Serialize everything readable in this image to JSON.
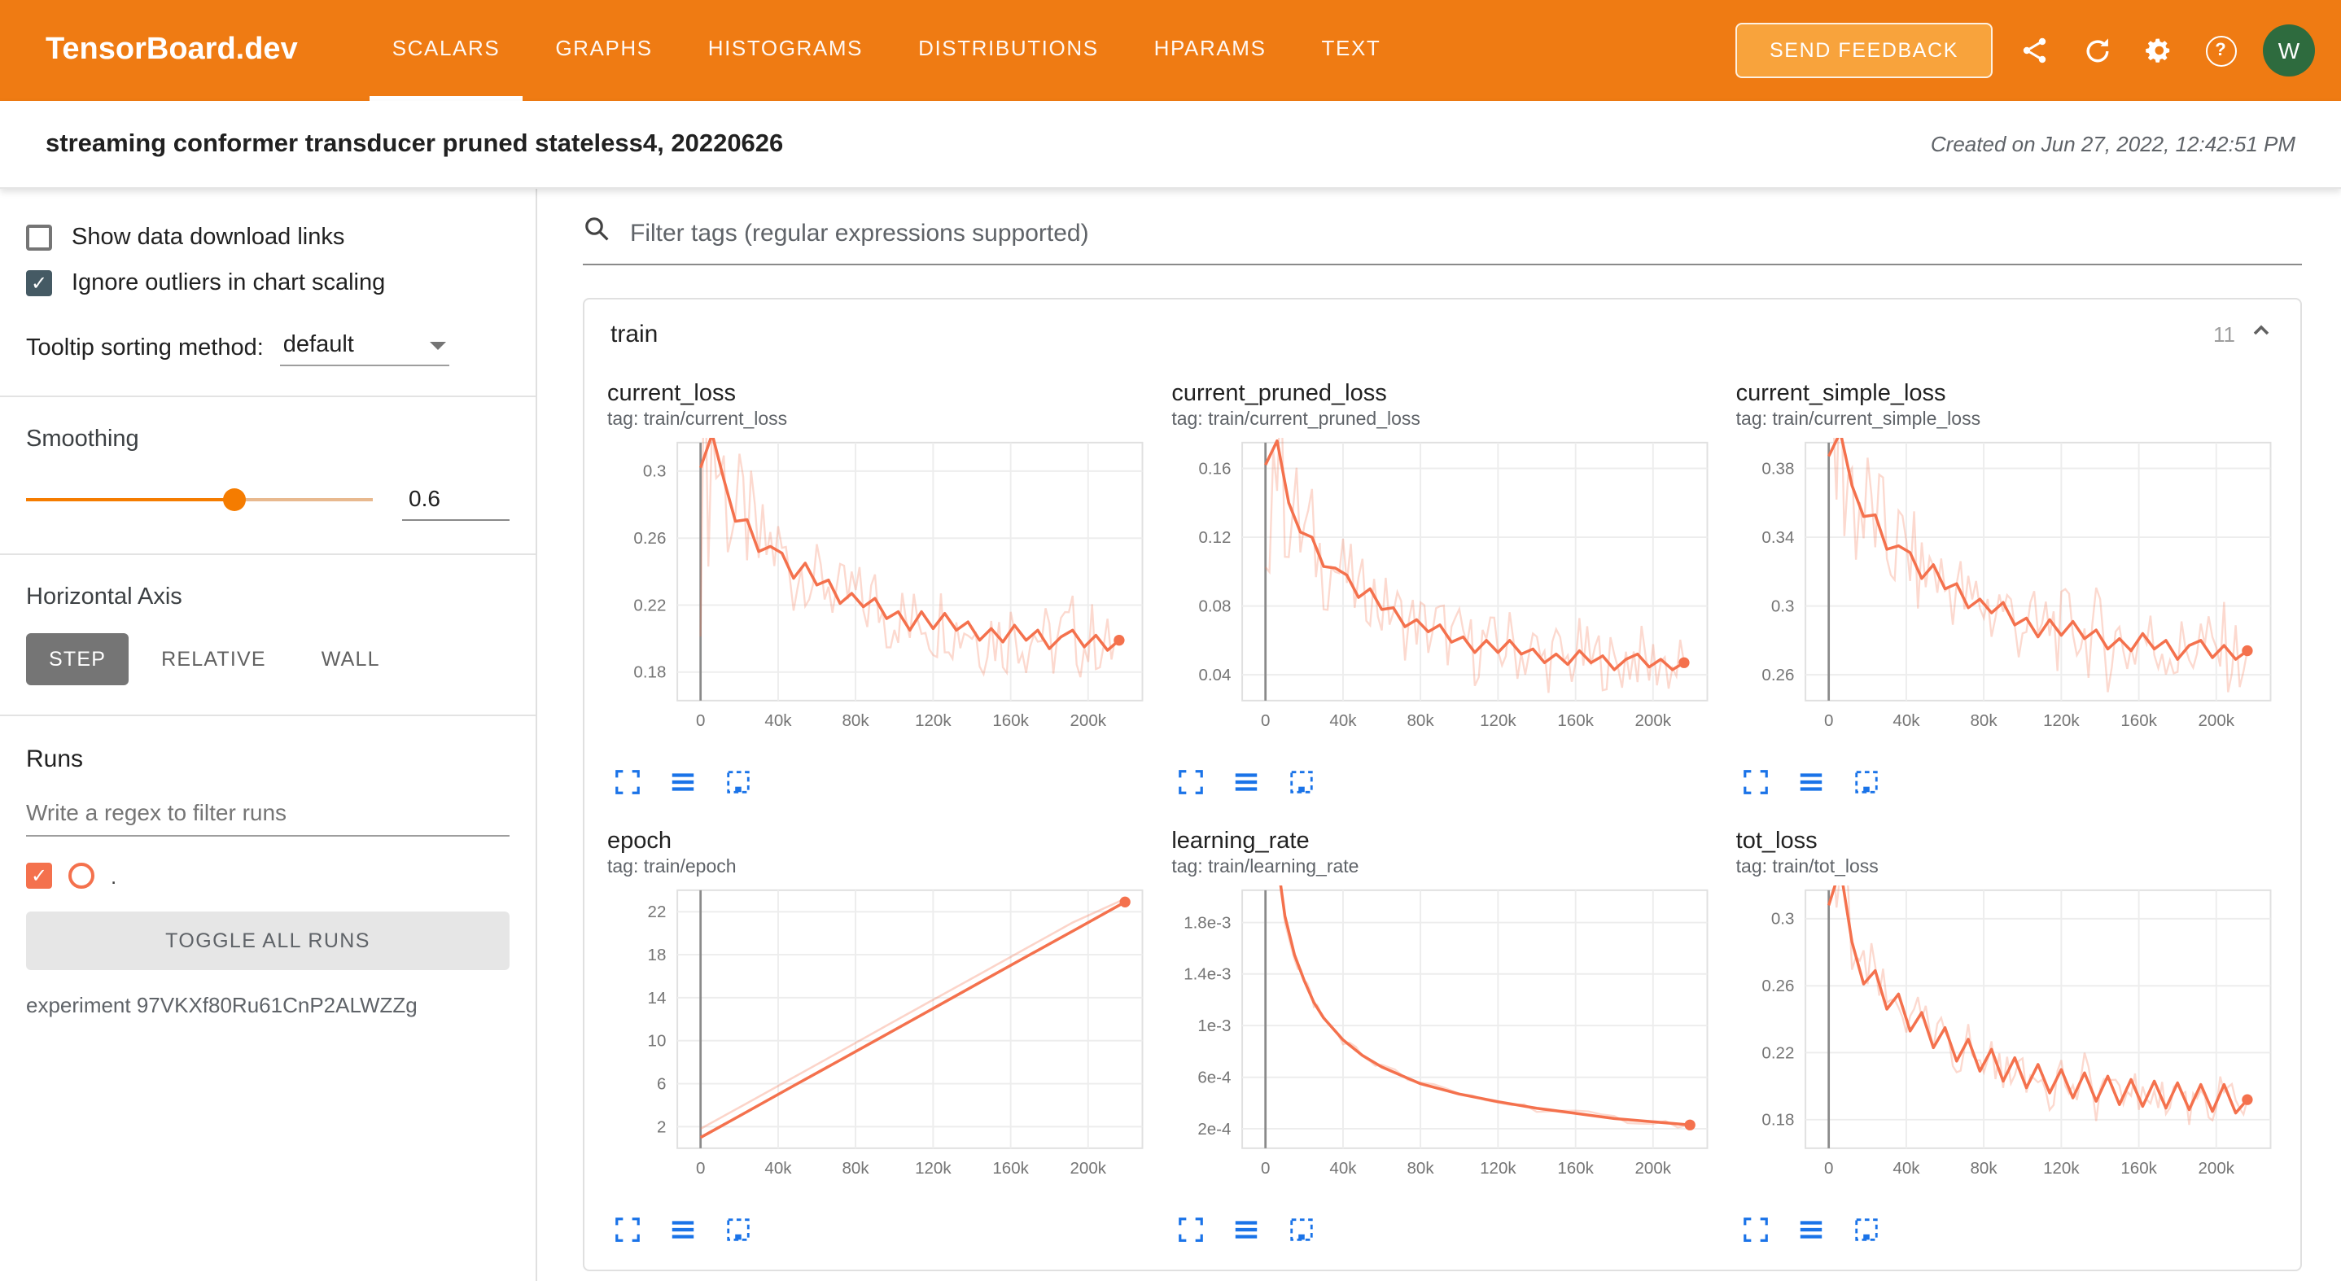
{
  "header": {
    "logo": "TensorBoard.dev",
    "tabs": [
      {
        "label": "SCALARS",
        "active": true
      },
      {
        "label": "GRAPHS",
        "active": false
      },
      {
        "label": "HISTOGRAMS",
        "active": false
      },
      {
        "label": "DISTRIBUTIONS",
        "active": false
      },
      {
        "label": "HPARAMS",
        "active": false
      },
      {
        "label": "TEXT",
        "active": false
      }
    ],
    "feedback_button": "SEND FEEDBACK",
    "icons": [
      "share-icon",
      "refresh-icon",
      "settings-icon",
      "help-icon"
    ],
    "avatar_letter": "W"
  },
  "subheader": {
    "title": "streaming conformer transducer pruned stateless4, 20220626",
    "created": "Created on Jun 27, 2022, 12:42:51 PM"
  },
  "sidebar": {
    "checkboxes": [
      {
        "label": "Show data download links",
        "checked": false
      },
      {
        "label": "Ignore outliers in chart scaling",
        "checked": true
      }
    ],
    "tooltip_sort_label": "Tooltip sorting method:",
    "tooltip_sort_value": "default",
    "smoothing_label": "Smoothing",
    "smoothing_value": "0.6",
    "horizontal_axis_label": "Horizontal Axis",
    "axis_buttons": [
      {
        "label": "STEP",
        "active": true
      },
      {
        "label": "RELATIVE",
        "active": false
      },
      {
        "label": "WALL",
        "active": false
      }
    ],
    "runs_label": "Runs",
    "runs_filter_placeholder": "Write a regex to filter runs",
    "run_item": {
      "name": ".",
      "checked": true
    },
    "toggle_all_label": "TOGGLE ALL RUNS",
    "experiment": "experiment 97VKXf80Ru61CnP2ALWZZg"
  },
  "main": {
    "filter_placeholder": "Filter tags (regular expressions supported)",
    "card": {
      "title": "train",
      "count": "11",
      "expanded": true
    }
  },
  "colors": {
    "header": "#ef7b13",
    "feedback_button": "#f8a33c",
    "avatar": "#2e6b3e",
    "run_color": "#f4714d",
    "slider": "#f57c00",
    "toolbar_icons": "#1a73e8",
    "checkbox_checked": "#455a64"
  },
  "chart_data": [
    {
      "type": "line",
      "name": "current_loss",
      "tag": "tag: train/current_loss",
      "x_start": 0,
      "x_step": 6000,
      "y": [
        0.302,
        0.322,
        0.295,
        0.27,
        0.271,
        0.252,
        0.255,
        0.251,
        0.236,
        0.245,
        0.232,
        0.235,
        0.221,
        0.227,
        0.219,
        0.224,
        0.212,
        0.216,
        0.205,
        0.216,
        0.206,
        0.215,
        0.205,
        0.21,
        0.199,
        0.206,
        0.198,
        0.208,
        0.199,
        0.205,
        0.194,
        0.201,
        0.205,
        0.195,
        0.202,
        0.193,
        0.199
      ],
      "raw_spread": 0.024,
      "xlim": [
        -12000,
        228000
      ],
      "ylim": [
        0.163,
        0.317
      ],
      "xticks": [
        0,
        40000,
        80000,
        120000,
        160000,
        200000
      ],
      "xtick_labels": [
        "0",
        "40k",
        "80k",
        "120k",
        "160k",
        "200k"
      ],
      "yticks": [
        0.18,
        0.22,
        0.26,
        0.3
      ],
      "ytick_labels": [
        "0.18",
        "0.22",
        "0.26",
        "0.3"
      ],
      "end_dot": true,
      "grid": true,
      "legend": "none"
    },
    {
      "type": "line",
      "name": "current_pruned_loss",
      "tag": "tag: train/current_pruned_loss",
      "x_start": 0,
      "x_step": 6000,
      "y": [
        0.162,
        0.176,
        0.14,
        0.123,
        0.12,
        0.103,
        0.102,
        0.098,
        0.085,
        0.09,
        0.078,
        0.079,
        0.068,
        0.072,
        0.065,
        0.069,
        0.059,
        0.062,
        0.053,
        0.06,
        0.053,
        0.06,
        0.052,
        0.055,
        0.047,
        0.052,
        0.046,
        0.054,
        0.047,
        0.051,
        0.043,
        0.049,
        0.052,
        0.0445,
        0.049,
        0.043,
        0.047
      ],
      "raw_spread": 0.02,
      "xlim": [
        -12000,
        228000
      ],
      "ylim": [
        0.025,
        0.175
      ],
      "xticks": [
        0,
        40000,
        80000,
        120000,
        160000,
        200000
      ],
      "xtick_labels": [
        "0",
        "40k",
        "80k",
        "120k",
        "160k",
        "200k"
      ],
      "yticks": [
        0.04,
        0.08,
        0.12,
        0.16
      ],
      "ytick_labels": [
        "0.04",
        "0.08",
        "0.12",
        "0.16"
      ],
      "end_dot": true,
      "grid": true,
      "legend": "none"
    },
    {
      "type": "line",
      "name": "current_simple_loss",
      "tag": "tag: train/current_simple_loss",
      "x_start": 0,
      "x_step": 6000,
      "y": [
        0.387,
        0.401,
        0.37,
        0.352,
        0.353,
        0.333,
        0.335,
        0.331,
        0.316,
        0.324,
        0.31,
        0.313,
        0.299,
        0.304,
        0.296,
        0.302,
        0.289,
        0.293,
        0.282,
        0.292,
        0.283,
        0.291,
        0.281,
        0.286,
        0.275,
        0.281,
        0.274,
        0.284,
        0.275,
        0.28,
        0.269,
        0.277,
        0.28,
        0.27,
        0.277,
        0.269,
        0.274
      ],
      "raw_spread": 0.026,
      "xlim": [
        -12000,
        228000
      ],
      "ylim": [
        0.245,
        0.395
      ],
      "xticks": [
        0,
        40000,
        80000,
        120000,
        160000,
        200000
      ],
      "xtick_labels": [
        "0",
        "40k",
        "80k",
        "120k",
        "160k",
        "200k"
      ],
      "yticks": [
        0.26,
        0.3,
        0.34,
        0.38
      ],
      "ytick_labels": [
        "0.26",
        "0.3",
        "0.34",
        "0.38"
      ],
      "end_dot": true,
      "grid": true,
      "legend": "none"
    },
    {
      "type": "line",
      "name": "epoch",
      "tag": "tag: train/epoch",
      "x": [
        0,
        24000,
        48000,
        72000,
        96000,
        120000,
        144000,
        168000,
        192000,
        219000
      ],
      "y": [
        1.0,
        3.4,
        5.8,
        8.2,
        10.6,
        13.0,
        15.4,
        17.8,
        20.2,
        22.9
      ],
      "raw_y": [
        1.8,
        4.2,
        6.6,
        9.0,
        11.4,
        13.8,
        16.2,
        18.6,
        21.0,
        23.2
      ],
      "raw_spread": 0,
      "xlim": [
        -12000,
        228000
      ],
      "ylim": [
        0,
        24
      ],
      "xticks": [
        0,
        40000,
        80000,
        120000,
        160000,
        200000
      ],
      "xtick_labels": [
        "0",
        "40k",
        "80k",
        "120k",
        "160k",
        "200k"
      ],
      "yticks": [
        2,
        6,
        10,
        14,
        18,
        22
      ],
      "ytick_labels": [
        "2",
        "6",
        "10",
        "14",
        "18",
        "22"
      ],
      "end_dot": true,
      "grid": true,
      "legend": "none"
    },
    {
      "type": "line",
      "name": "learning_rate",
      "tag": "tag: train/learning_rate",
      "x": [
        5000,
        10000,
        15000,
        20000,
        25000,
        30000,
        40000,
        50000,
        60000,
        80000,
        100000,
        120000,
        140000,
        160000,
        180000,
        200000,
        219000
      ],
      "y": [
        0.0024,
        0.00185,
        0.00155,
        0.00135,
        0.00118,
        0.00106,
        0.00089,
        0.00077,
        0.00068,
        0.00055,
        0.00047,
        0.00041,
        0.00036,
        0.00032,
        0.00028,
        0.000255,
        0.00023
      ],
      "raw_spread": 3e-05,
      "xlim": [
        -12000,
        228000
      ],
      "ylim": [
        5e-05,
        0.00205
      ],
      "xticks": [
        0,
        40000,
        80000,
        120000,
        160000,
        200000
      ],
      "xtick_labels": [
        "0",
        "40k",
        "80k",
        "120k",
        "160k",
        "200k"
      ],
      "yticks": [
        0.0002,
        0.0006,
        0.001,
        0.0014,
        0.0018
      ],
      "ytick_labels": [
        "2e-4",
        "6e-4",
        "1e-3",
        "1.4e-3",
        "1.8e-3"
      ],
      "end_dot": true,
      "grid": true,
      "legend": "none"
    },
    {
      "type": "line",
      "name": "tot_loss",
      "tag": "tag: train/tot_loss",
      "x_start": 0,
      "x_step": 6000,
      "y": [
        0.308,
        0.33,
        0.286,
        0.261,
        0.269,
        0.246,
        0.255,
        0.233,
        0.244,
        0.223,
        0.235,
        0.215,
        0.228,
        0.209,
        0.222,
        0.203,
        0.217,
        0.199,
        0.213,
        0.196,
        0.21,
        0.193,
        0.208,
        0.191,
        0.206,
        0.189,
        0.204,
        0.188,
        0.203,
        0.187,
        0.202,
        0.186,
        0.201,
        0.185,
        0.201,
        0.184,
        0.192
      ],
      "raw_spread": 0.012,
      "xlim": [
        -12000,
        228000
      ],
      "ylim": [
        0.163,
        0.317
      ],
      "xticks": [
        0,
        40000,
        80000,
        120000,
        160000,
        200000
      ],
      "xtick_labels": [
        "0",
        "40k",
        "80k",
        "120k",
        "160k",
        "200k"
      ],
      "yticks": [
        0.18,
        0.22,
        0.26,
        0.3
      ],
      "ytick_labels": [
        "0.18",
        "0.22",
        "0.26",
        "0.3"
      ],
      "end_dot": true,
      "grid": true,
      "legend": "none"
    }
  ]
}
